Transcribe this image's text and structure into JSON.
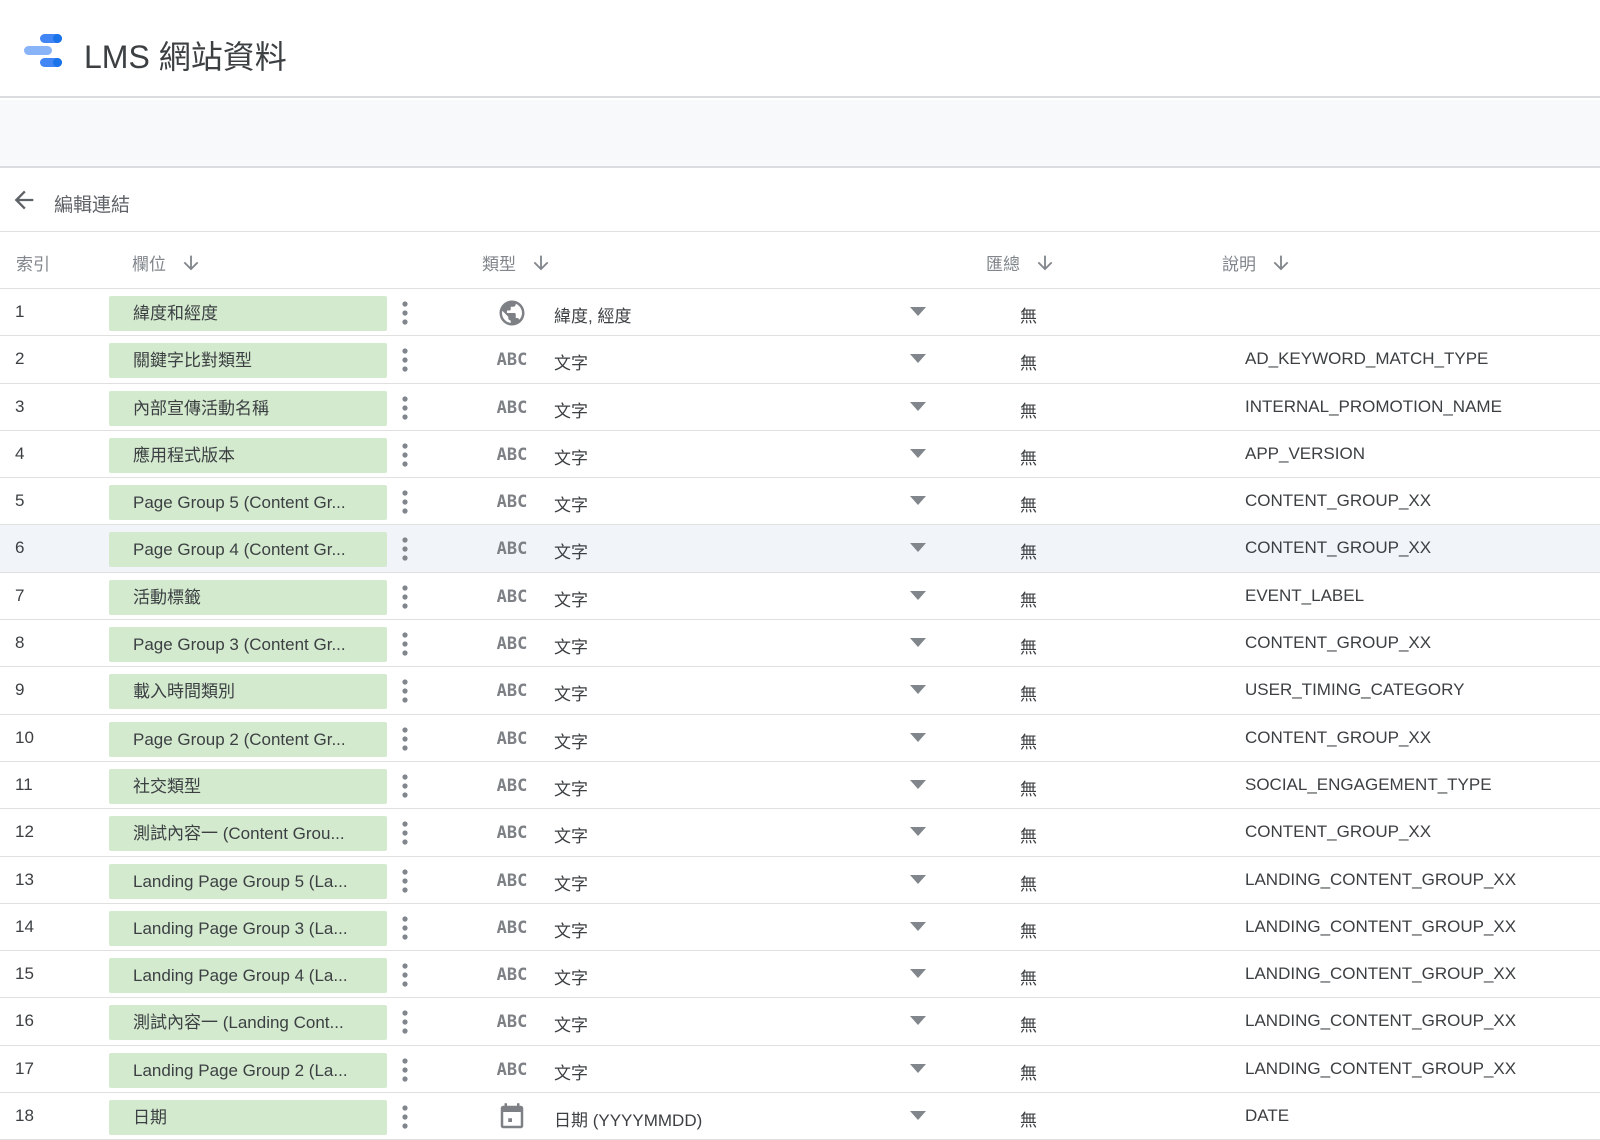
{
  "app": {
    "title": "LMS 網站資料"
  },
  "breadcrumb": {
    "label": "編輯連結"
  },
  "columns": {
    "index": "索引",
    "field": "欄位",
    "type": "類型",
    "aggregation": "匯總",
    "description": "說明"
  },
  "rows": [
    {
      "index": "1",
      "field": "緯度和經度",
      "type_icon": "globe-icon",
      "type": "緯度, 經度",
      "aggregation": "無",
      "description": ""
    },
    {
      "index": "2",
      "field": "關鍵字比對類型",
      "type_icon": "abc-icon",
      "type": "文字",
      "aggregation": "無",
      "description": "AD_KEYWORD_MATCH_TYPE"
    },
    {
      "index": "3",
      "field": "內部宣傳活動名稱",
      "type_icon": "abc-icon",
      "type": "文字",
      "aggregation": "無",
      "description": "INTERNAL_PROMOTION_NAME"
    },
    {
      "index": "4",
      "field": "應用程式版本",
      "type_icon": "abc-icon",
      "type": "文字",
      "aggregation": "無",
      "description": "APP_VERSION"
    },
    {
      "index": "5",
      "field": "Page Group 5 (Content Gr...",
      "type_icon": "abc-icon",
      "type": "文字",
      "aggregation": "無",
      "description": "CONTENT_GROUP_XX"
    },
    {
      "index": "6",
      "field": "Page Group 4 (Content Gr...",
      "type_icon": "abc-icon",
      "type": "文字",
      "aggregation": "無",
      "description": "CONTENT_GROUP_XX"
    },
    {
      "index": "7",
      "field": "活動標籤",
      "type_icon": "abc-icon",
      "type": "文字",
      "aggregation": "無",
      "description": "EVENT_LABEL"
    },
    {
      "index": "8",
      "field": "Page Group 3 (Content Gr...",
      "type_icon": "abc-icon",
      "type": "文字",
      "aggregation": "無",
      "description": "CONTENT_GROUP_XX"
    },
    {
      "index": "9",
      "field": "載入時間類別",
      "type_icon": "abc-icon",
      "type": "文字",
      "aggregation": "無",
      "description": "USER_TIMING_CATEGORY"
    },
    {
      "index": "10",
      "field": "Page Group 2 (Content Gr...",
      "type_icon": "abc-icon",
      "type": "文字",
      "aggregation": "無",
      "description": "CONTENT_GROUP_XX"
    },
    {
      "index": "11",
      "field": "社交類型",
      "type_icon": "abc-icon",
      "type": "文字",
      "aggregation": "無",
      "description": "SOCIAL_ENGAGEMENT_TYPE"
    },
    {
      "index": "12",
      "field": "測試內容一 (Content Grou...",
      "type_icon": "abc-icon",
      "type": "文字",
      "aggregation": "無",
      "description": "CONTENT_GROUP_XX"
    },
    {
      "index": "13",
      "field": "Landing Page Group 5 (La...",
      "type_icon": "abc-icon",
      "type": "文字",
      "aggregation": "無",
      "description": "LANDING_CONTENT_GROUP_XX"
    },
    {
      "index": "14",
      "field": "Landing Page Group 3 (La...",
      "type_icon": "abc-icon",
      "type": "文字",
      "aggregation": "無",
      "description": "LANDING_CONTENT_GROUP_XX"
    },
    {
      "index": "15",
      "field": "Landing Page Group 4 (La...",
      "type_icon": "abc-icon",
      "type": "文字",
      "aggregation": "無",
      "description": "LANDING_CONTENT_GROUP_XX"
    },
    {
      "index": "16",
      "field": "測試內容一 (Landing Cont...",
      "type_icon": "abc-icon",
      "type": "文字",
      "aggregation": "無",
      "description": "LANDING_CONTENT_GROUP_XX"
    },
    {
      "index": "17",
      "field": "Landing Page Group 2 (La...",
      "type_icon": "abc-icon",
      "type": "文字",
      "aggregation": "無",
      "description": "LANDING_CONTENT_GROUP_XX"
    },
    {
      "index": "18",
      "field": "日期",
      "type_icon": "calendar-icon",
      "type": "日期 (YYYYMMDD)",
      "aggregation": "無",
      "description": "DATE"
    }
  ],
  "colors": {
    "chip_bg": "#d4eacf",
    "highlight_row": "#f1f4f8",
    "logo_blue": "#4285f4",
    "logo_light": "#8ab4f8"
  },
  "highlighted_row": "6"
}
